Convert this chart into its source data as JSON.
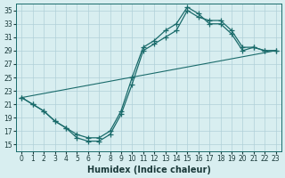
{
  "xlabel": "Humidex (Indice chaleur)",
  "ylabel": "",
  "bg_color": "#d8eef0",
  "grid_color": "#b0d0d8",
  "line_color": "#1a6b6b",
  "xlim": [
    -0.5,
    23.5
  ],
  "ylim": [
    14,
    36
  ],
  "yticks": [
    15,
    17,
    19,
    21,
    23,
    25,
    27,
    29,
    31,
    33,
    35
  ],
  "xticks": [
    0,
    1,
    2,
    3,
    4,
    5,
    6,
    7,
    8,
    9,
    10,
    11,
    12,
    13,
    14,
    15,
    16,
    17,
    18,
    19,
    20,
    21,
    22,
    23
  ],
  "line1_x": [
    0,
    1,
    2,
    3,
    4,
    5,
    6,
    7,
    8,
    9,
    10,
    11,
    12,
    13,
    14,
    15,
    16,
    17,
    18,
    19,
    20,
    21,
    22,
    23
  ],
  "line1_y": [
    22,
    21,
    20,
    18.5,
    17.5,
    16,
    15.5,
    15.5,
    16.5,
    19.5,
    24,
    29,
    30,
    31,
    32,
    35,
    34,
    33.5,
    33.5,
    32,
    29.5,
    29.5,
    29,
    29
  ],
  "line2_x": [
    0,
    1,
    2,
    3,
    4,
    5,
    6,
    7,
    8,
    9,
    10,
    11,
    12,
    13,
    14,
    15,
    16,
    17,
    18,
    19,
    20,
    21,
    22,
    23
  ],
  "line2_y": [
    22,
    21,
    20,
    18.5,
    17.5,
    16.5,
    16,
    16,
    17,
    20,
    25,
    29.5,
    30.5,
    32,
    33,
    35.5,
    34.5,
    33,
    33,
    31.5,
    29,
    29.5,
    29,
    29
  ],
  "line3_x": [
    0,
    23
  ],
  "line3_y": [
    22,
    29
  ]
}
